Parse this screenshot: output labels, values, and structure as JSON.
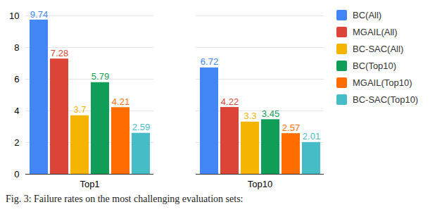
{
  "chart_data": {
    "type": "bar",
    "caption": "Fig. 3: Failure rates on the most challenging evaluation sets:",
    "categories": [
      "Top1",
      "Top10"
    ],
    "series": [
      {
        "name": "BC(All)",
        "color": "#4285f4",
        "values": [
          9.74,
          6.72
        ]
      },
      {
        "name": "MGAIL(All)",
        "color": "#db4437",
        "values": [
          7.28,
          4.22
        ]
      },
      {
        "name": "BC-SAC(All)",
        "color": "#f4b400",
        "values": [
          3.7,
          3.3
        ]
      },
      {
        "name": "BC(Top10)",
        "color": "#0f9d58",
        "values": [
          5.79,
          3.45
        ]
      },
      {
        "name": "MGAIL(Top10)",
        "color": "#ff6d01",
        "values": [
          4.21,
          2.57
        ]
      },
      {
        "name": "BC-SAC(Top10)",
        "color": "#46bdc6",
        "values": [
          2.59,
          2.01
        ]
      }
    ],
    "ylim": [
      0,
      10
    ],
    "yticks": [
      0,
      2,
      4,
      6,
      8,
      10
    ],
    "grid": true,
    "legend": "right",
    "data_labels": true
  }
}
